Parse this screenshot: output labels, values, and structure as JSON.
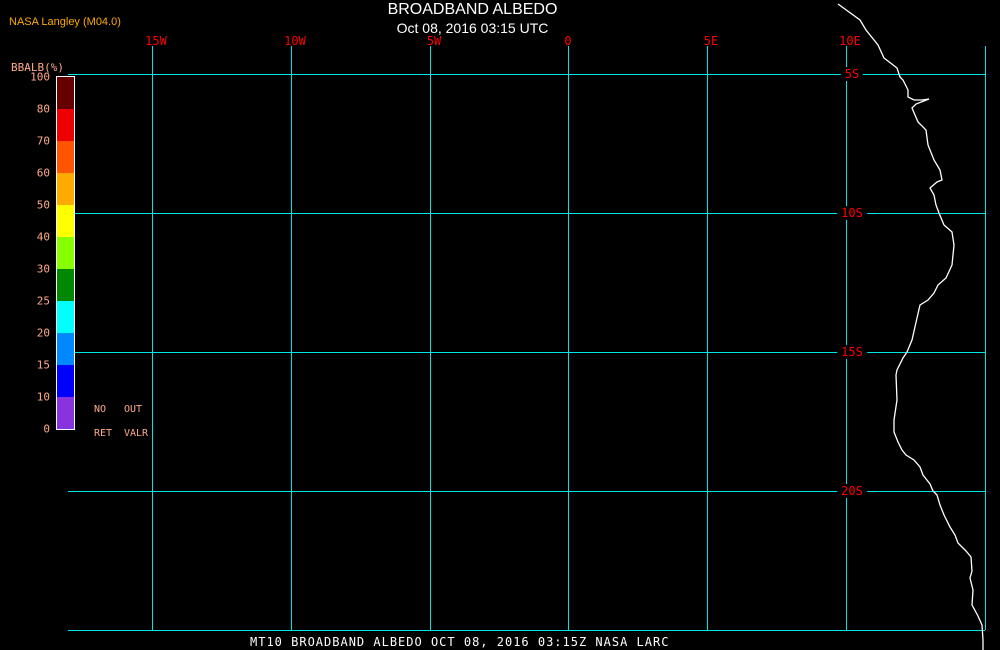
{
  "header": {
    "organization": "NASA Langley (M04.0)",
    "title": "BROADBAND ALBEDO",
    "subtitle": "Oct 08, 2016 03:15 UTC"
  },
  "footer": "MT10  BROADBAND ALBEDO   OCT 08, 2016 03:15Z   NASA LARC",
  "map": {
    "longitude_labels": [
      "15W",
      "10W",
      "5W",
      "0",
      "5E",
      "10E"
    ],
    "latitude_labels": [
      "5S",
      "10S",
      "15S",
      "20S"
    ],
    "gridline_color": "#00e5e5",
    "coastline_color": "#ffffff"
  },
  "colorbar": {
    "title": "BBALB(%)",
    "tick_labels": [
      "100",
      "80",
      "70",
      "60",
      "50",
      "40",
      "30",
      "25",
      "20",
      "15",
      "10",
      "0"
    ],
    "colors": [
      "#660000",
      "#ee0000",
      "#ff5500",
      "#ffaa00",
      "#ffff00",
      "#88ff00",
      "#008800",
      "#00ffff",
      "#0088ff",
      "#0000ff",
      "#8833dd"
    ],
    "no_retrieval": [
      "NO",
      "RET"
    ],
    "out_of_range": [
      "OUT",
      "VALR"
    ]
  }
}
